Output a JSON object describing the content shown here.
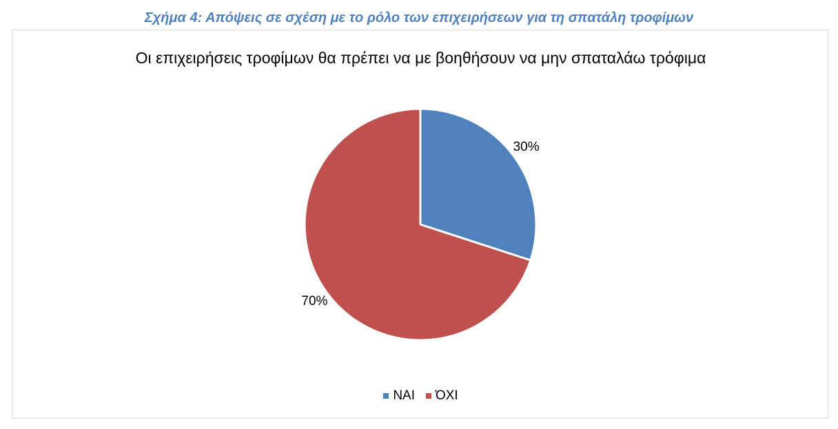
{
  "figure_caption": "Σχήμα 4: Απόψεις σε σχέση με το ρόλο των επιχειρήσεων για τη σπατάλη τροφίμων",
  "chart_data": {
    "type": "pie",
    "title": "Οι επιχειρήσεις τροφίμων θα πρέπει να με βοηθήσουν να μην σπαταλάω τρόφιμα",
    "categories": [
      "ΝΑΙ",
      "ΌΧΙ"
    ],
    "values": [
      30,
      70
    ],
    "data_labels": [
      "30%",
      "70%"
    ],
    "colors": [
      "#4f81bd",
      "#c0504d"
    ],
    "legend": {
      "position": "bottom",
      "entries": [
        "ΝΑΙ",
        "ΌΧΙ"
      ]
    },
    "grid": false
  }
}
